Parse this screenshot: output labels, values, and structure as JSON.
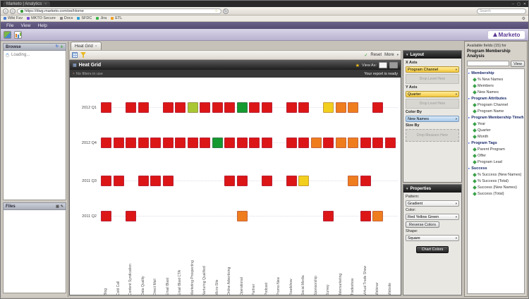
{
  "icons": {
    "close": "✕",
    "minimize": "─",
    "maximize": "▢",
    "remove": "×",
    "back": "‹",
    "forward": "›",
    "reload": "↻",
    "star_outline": "☆",
    "gear": "⚙",
    "dropdown_arrow": "▾",
    "collapse_arrow": "▼",
    "tree_arrow": "▸",
    "check": "✓",
    "star": "★",
    "pencil": "✎",
    "plus": "＋",
    "refresh": "↻",
    "grid": "▦"
  },
  "browser": {
    "window_tab": "Marketo | Analytics",
    "url": "https://dwg.marketo.com/ee/Home",
    "search_placeholder": "Search",
    "bookmarks": [
      {
        "label": "Wiki Fav",
        "color": "#4a7fd4"
      },
      {
        "label": "MKTO Secure",
        "color": "#7a4fd4"
      },
      {
        "label": "Docs",
        "color": "#888888"
      },
      {
        "label": "SFDC",
        "color": "#2a9fd4"
      },
      {
        "label": "Jira",
        "color": "#3ab54a"
      },
      {
        "label": "ETL",
        "color": "#f0a020"
      }
    ],
    "menus": [
      "File",
      "View",
      "Help"
    ]
  },
  "brand": {
    "logo": "Marketo"
  },
  "left": {
    "browse_title": "Browse",
    "loading": "Loading...",
    "files_title": "Files"
  },
  "center": {
    "tab": "Heat Grid",
    "reset": "Reset",
    "more": "More",
    "panel_title": "Heat Grid",
    "view_as": "View As:",
    "filter_text": "No filters in use",
    "ready_text": "Your report is ready"
  },
  "layout_panel": {
    "title": "Layout",
    "x_axis_label": "X Axis",
    "x_axis_value": "Program Channel",
    "drop_level": "Drop Level Here",
    "y_axis_label": "Y Axis",
    "y_axis_value": "Quarter",
    "color_by_label": "Color By",
    "color_by_value": "New Names",
    "size_by_label": "Size By",
    "drop_measure": "Drop Measure Here"
  },
  "properties_panel": {
    "title": "Properties",
    "pattern_label": "Pattern:",
    "pattern_value": "Gradient",
    "color_label": "Color:",
    "color_value": "Red Yellow Green",
    "reverse_colors": "Reverse Colors",
    "shape_label": "Shape:",
    "shape_value": "Square",
    "chart_colors": "Chart Colors"
  },
  "fields_panel": {
    "title_line1": "Available fields (15) for",
    "title_line2": "Program Membership Analysis",
    "search_value": "",
    "view_button": "View",
    "sections": [
      {
        "label": "Membership",
        "items": [
          "% New Names",
          "Members",
          "New Names"
        ]
      },
      {
        "label": "Program Attributes",
        "items": [
          "Program Channel",
          "Program Name"
        ]
      },
      {
        "label": "Program Membership Timeframe",
        "items": [
          "Year",
          "Quarter",
          "Month"
        ]
      },
      {
        "label": "Program Tags",
        "items": [
          "Parent Program",
          "Offer",
          "Program Lead"
        ]
      },
      {
        "label": "Success",
        "items": [
          "% Success (New Names)",
          "% Success (Total)",
          "Success (New Names)",
          "Success (Total)"
        ]
      }
    ]
  },
  "chart_data": {
    "type": "heatmap",
    "title": "Heat Grid",
    "x_axis": "Program Channel",
    "y_axis": "Quarter",
    "color_by": "New Names",
    "legend": "none",
    "palette": {
      "R": "#dc1616",
      "O": "#ef7d1e",
      "Y": "#f2cf1c",
      "YG": "#a9c732",
      "G": "#159a30"
    },
    "x_categories": [
      "Blog",
      "Cold Call",
      "Content Syndication",
      "Data Quality",
      "Direct Mail",
      "Email Blast",
      "Email Blast CTA",
      "Marketing Prospecting",
      "Nurturing Qualified",
      "Micro-Site",
      "Online Advertising",
      "Operational",
      "Partner",
      "Podcast",
      "Promo New",
      "Roadshow",
      "Social Media",
      "Sponsorship",
      "Survey",
      "Telemarketing",
      "Tradeshow",
      "Virtual Trade Show",
      "Webinar",
      "Website"
    ],
    "y_categories": [
      "2012 Q1",
      "2012 Q4",
      "2011 Q3",
      "2011 Q2"
    ],
    "cells": [
      [
        "R",
        null,
        "R",
        "R",
        null,
        "R",
        "R",
        "YG",
        "R",
        "R",
        "R",
        "G",
        "R",
        "R",
        null,
        "R",
        "R",
        null,
        "Y",
        "O",
        "O",
        null,
        "R",
        null
      ],
      [
        "R",
        "R",
        "R",
        "R",
        "R",
        "R",
        "R",
        "R",
        "R",
        "G",
        "R",
        "R",
        "R",
        "R",
        null,
        "R",
        "R",
        "O",
        "R",
        "O",
        "O",
        "R",
        "R",
        "R"
      ],
      [
        "R",
        "R",
        null,
        "R",
        "R",
        "R",
        null,
        null,
        null,
        null,
        "R",
        "R",
        null,
        "R",
        null,
        "R",
        "Y",
        null,
        null,
        null,
        "O",
        "R",
        null,
        null
      ],
      [
        "R",
        null,
        "R",
        null,
        null,
        null,
        null,
        null,
        null,
        null,
        null,
        "O",
        null,
        null,
        null,
        null,
        null,
        null,
        "R",
        null,
        null,
        "R",
        "O",
        null
      ]
    ]
  }
}
